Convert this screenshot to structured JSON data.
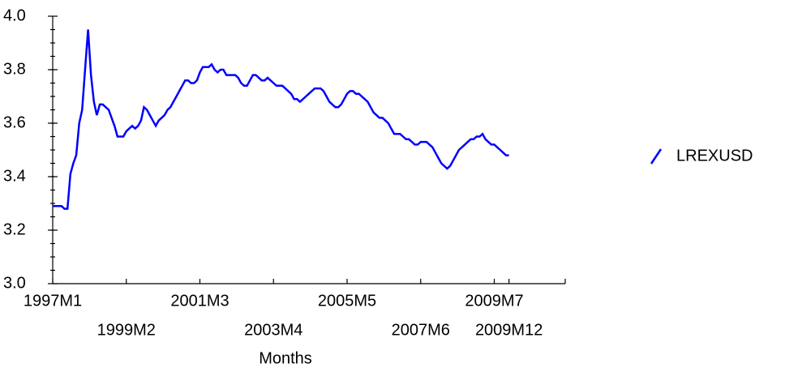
{
  "chart_data": {
    "type": "line",
    "x_label": "Months",
    "categories": [
      "1997M1",
      null,
      null,
      null,
      null,
      null,
      null,
      null,
      null,
      null,
      null,
      null,
      null,
      null,
      null,
      null,
      null,
      null,
      null,
      null,
      null,
      null,
      null,
      null,
      null,
      "1999M2",
      null,
      null,
      null,
      null,
      null,
      null,
      null,
      null,
      null,
      null,
      null,
      null,
      null,
      null,
      null,
      null,
      null,
      null,
      null,
      null,
      null,
      null,
      null,
      null,
      "2001M3",
      null,
      null,
      null,
      null,
      null,
      null,
      null,
      null,
      null,
      null,
      null,
      null,
      null,
      null,
      null,
      null,
      null,
      null,
      null,
      null,
      null,
      null,
      null,
      null,
      "2003M4",
      null,
      null,
      null,
      null,
      null,
      null,
      null,
      null,
      null,
      null,
      null,
      null,
      null,
      null,
      null,
      null,
      null,
      null,
      null,
      null,
      null,
      null,
      null,
      null,
      "2005M5",
      null,
      null,
      null,
      null,
      null,
      null,
      null,
      null,
      null,
      null,
      null,
      null,
      null,
      null,
      null,
      null,
      null,
      null,
      null,
      null,
      null,
      null,
      null,
      null,
      "2007M6",
      null,
      null,
      null,
      null,
      null,
      null,
      null,
      null,
      null,
      null,
      null,
      null,
      null,
      null,
      null,
      null,
      null,
      null,
      null,
      null,
      null,
      null,
      null,
      null,
      "2009M7",
      null,
      null,
      null,
      null,
      "2009M12"
    ],
    "series": [
      {
        "name": "LREXUSD",
        "color": "#0000ff",
        "values": [
          3.29,
          3.29,
          3.29,
          3.29,
          3.28,
          3.28,
          3.41,
          3.45,
          3.48,
          3.6,
          3.65,
          3.8,
          3.95,
          3.78,
          3.68,
          3.63,
          3.67,
          3.67,
          3.66,
          3.65,
          3.62,
          3.59,
          3.55,
          3.55,
          3.55,
          3.57,
          3.58,
          3.59,
          3.58,
          3.59,
          3.61,
          3.66,
          3.65,
          3.63,
          3.61,
          3.59,
          3.61,
          3.62,
          3.63,
          3.65,
          3.66,
          3.68,
          3.7,
          3.72,
          3.74,
          3.76,
          3.76,
          3.75,
          3.75,
          3.76,
          3.79,
          3.81,
          3.81,
          3.81,
          3.82,
          3.8,
          3.79,
          3.8,
          3.8,
          3.78,
          3.78,
          3.78,
          3.78,
          3.77,
          3.75,
          3.74,
          3.74,
          3.76,
          3.78,
          3.78,
          3.77,
          3.76,
          3.76,
          3.77,
          3.76,
          3.75,
          3.74,
          3.74,
          3.74,
          3.73,
          3.72,
          3.71,
          3.69,
          3.69,
          3.68,
          3.69,
          3.7,
          3.71,
          3.72,
          3.73,
          3.73,
          3.73,
          3.72,
          3.7,
          3.68,
          3.67,
          3.66,
          3.66,
          3.67,
          3.69,
          3.71,
          3.72,
          3.72,
          3.71,
          3.71,
          3.7,
          3.69,
          3.68,
          3.66,
          3.64,
          3.63,
          3.62,
          3.62,
          3.61,
          3.6,
          3.58,
          3.56,
          3.56,
          3.56,
          3.55,
          3.54,
          3.54,
          3.53,
          3.52,
          3.52,
          3.53,
          3.53,
          3.53,
          3.52,
          3.51,
          3.49,
          3.47,
          3.45,
          3.44,
          3.43,
          3.44,
          3.46,
          3.48,
          3.5,
          3.51,
          3.52,
          3.53,
          3.54,
          3.54,
          3.55,
          3.55,
          3.56,
          3.54,
          3.53,
          3.52,
          3.52,
          3.51,
          3.5,
          3.49,
          3.48,
          3.48
        ]
      }
    ],
    "ylim": [
      3.0,
      4.0
    ],
    "yticks": [
      {
        "value": 3.0,
        "label": "3.0"
      },
      3.2,
      3.4,
      3.6,
      3.8,
      {
        "value": 4.0,
        "label": "4.0"
      }
    ],
    "legend": "right"
  }
}
